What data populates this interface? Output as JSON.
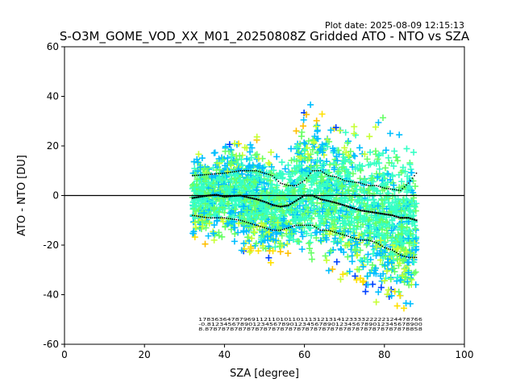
{
  "plot_date": "Plot date: 2025-08-09 12:15:13",
  "chart_data": {
    "type": "scatter",
    "title": "S-O3M_GOME_VOD_XX_M01_20250808Z Gridded ATO - NTO vs SZA",
    "xlabel": "SZA [degree]",
    "ylabel": "ATO - NTO [DU]",
    "xlim": [
      0,
      100
    ],
    "ylim": [
      -60,
      60
    ],
    "xticks": [
      0,
      20,
      40,
      60,
      80,
      100
    ],
    "yticks": [
      -60,
      -40,
      -20,
      0,
      20,
      40,
      60
    ],
    "grid": false,
    "zero_line": 0,
    "marker": "+",
    "scatter_envelope": {
      "sza": [
        32,
        36,
        40,
        44,
        48,
        52,
        56,
        60,
        62,
        66,
        70,
        74,
        78,
        82,
        86,
        88
      ],
      "upper": [
        20,
        22,
        27,
        28,
        26,
        22,
        21,
        40,
        42,
        38,
        34,
        32,
        35,
        32,
        30,
        22
      ],
      "lower": [
        -22,
        -24,
        -24,
        -28,
        -30,
        -32,
        -30,
        -32,
        -34,
        -36,
        -40,
        -46,
        -50,
        -54,
        -58,
        -50
      ]
    },
    "color_sequence": [
      "#00bfff",
      "#36ffc5",
      "#66ff66",
      "#c6ff33",
      "#ffe000",
      "#ffbf00",
      "#0040ff"
    ],
    "mean_profile": {
      "sza": [
        32,
        34,
        36,
        38,
        40,
        42,
        44,
        46,
        48,
        50,
        52,
        54,
        56,
        58,
        60,
        62,
        64,
        66,
        68,
        70,
        72,
        74,
        76,
        78,
        80,
        82,
        84,
        86,
        88
      ],
      "values": [
        -1,
        -0.5,
        0,
        0.3,
        -0.5,
        -0.2,
        0,
        -0.8,
        -1.5,
        -2.5,
        -3.8,
        -4.5,
        -4,
        -2,
        0,
        0,
        -1.5,
        -2.2,
        -3,
        -4,
        -5,
        -6,
        -6.5,
        -7,
        -7.5,
        -8,
        -9,
        -9,
        -10
      ]
    },
    "upper_std_profile": {
      "sza": [
        32,
        36,
        40,
        44,
        48,
        52,
        54,
        56,
        58,
        60,
        62,
        64,
        66,
        68,
        70,
        72,
        74,
        76,
        78,
        80,
        82,
        84,
        86,
        88
      ],
      "values": [
        8,
        8.5,
        9,
        10,
        10,
        8,
        5,
        4,
        4,
        6,
        10,
        10,
        8,
        7.5,
        6,
        5.5,
        5,
        4,
        4,
        3,
        2.5,
        2,
        5,
        9
      ]
    },
    "lower_std_profile": {
      "sza": [
        32,
        36,
        40,
        44,
        48,
        52,
        54,
        56,
        58,
        60,
        62,
        64,
        66,
        68,
        70,
        72,
        74,
        76,
        78,
        80,
        82,
        84,
        86,
        88
      ],
      "values": [
        -8,
        -9,
        -9,
        -10,
        -12,
        -14,
        -14,
        -13,
        -12,
        -12,
        -12,
        -14,
        -14,
        -15,
        -16,
        -17,
        -18,
        -18,
        -19,
        -21,
        -22,
        -24,
        -25,
        -25
      ]
    },
    "bin_statistics_row_values": [
      "1783636478796911211010110111312131412333322222124478766",
      "-0.8123456789012345678901234567890123456789012345678900",
      "8.8787878787878787878787878787878787878787878787878858"
    ]
  }
}
